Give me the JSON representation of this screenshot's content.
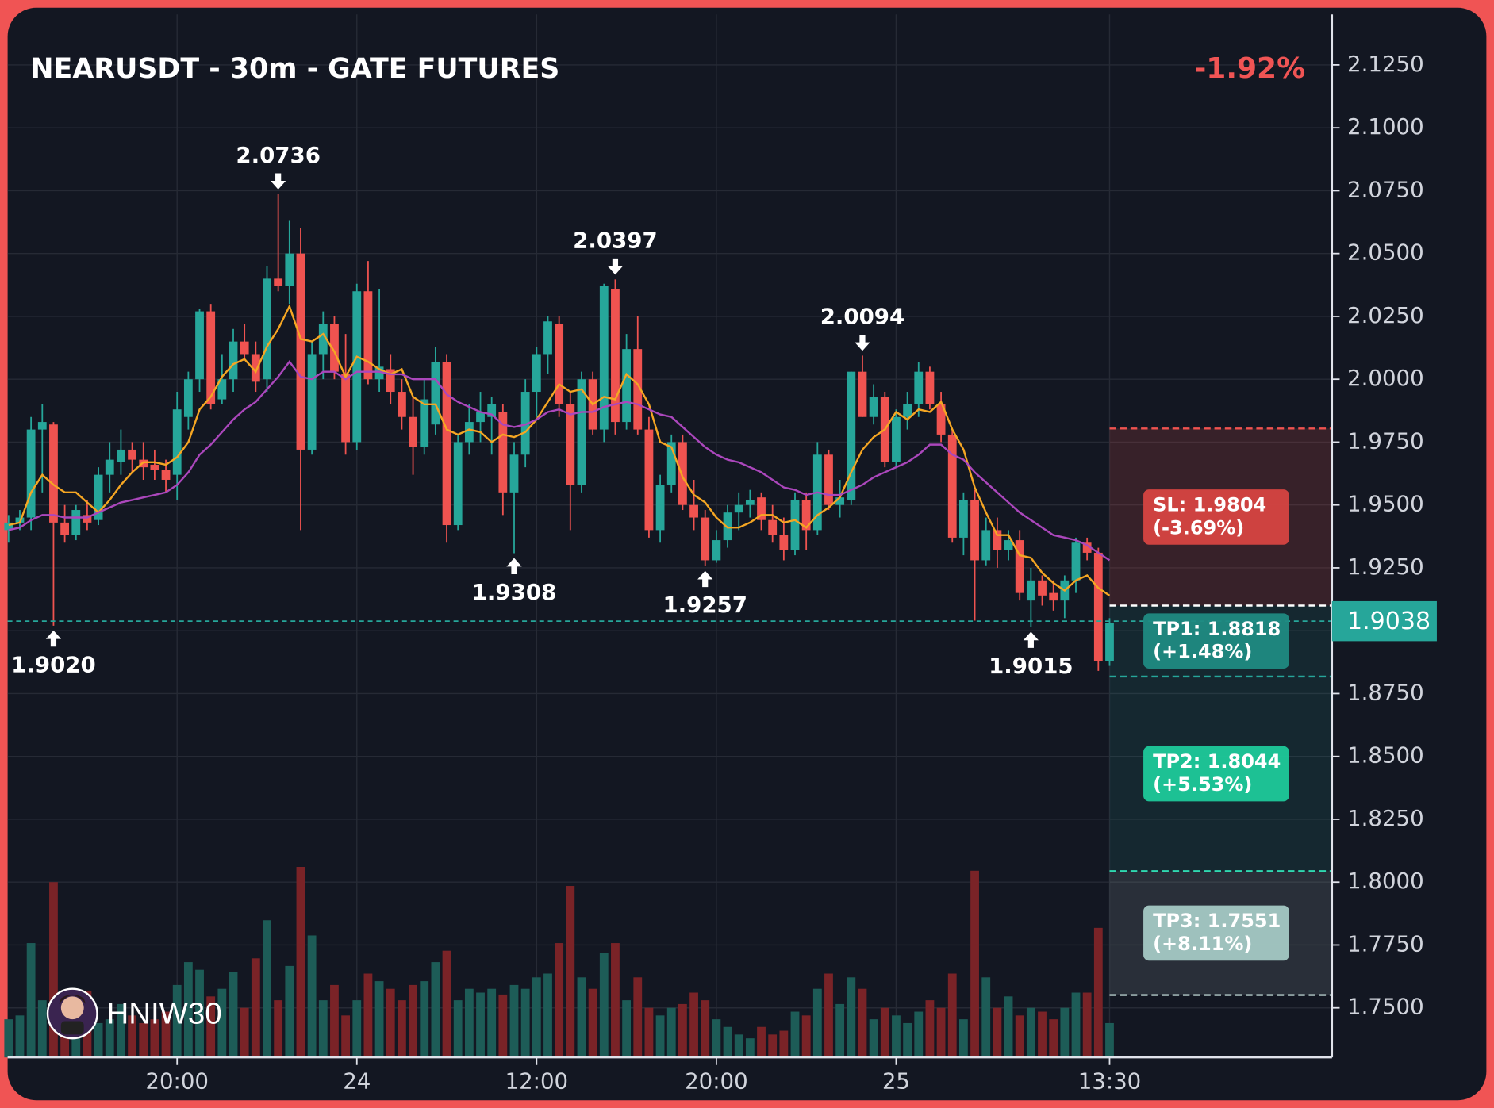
{
  "chart_data": {
    "type": "candlestick",
    "title": "NEARUSDT - 30m - GATE FUTURES",
    "change": "-1.92%",
    "watermark": "HNIW30",
    "up_color": "#26a69a",
    "down_color": "#ef5350",
    "volume_up_color": "#1d5c57",
    "volume_down_color": "#7a2327",
    "xlim": [
      -0.085,
      117.8
    ],
    "ylim": [
      1.7303,
      2.1451
    ],
    "vlim": [
      0,
      100
    ],
    "grid": true,
    "yticks": [
      {
        "value": 2.125,
        "label": "2.1250"
      },
      {
        "value": 2.1,
        "label": "2.1000"
      },
      {
        "value": 2.075,
        "label": "2.0750"
      },
      {
        "value": 2.05,
        "label": "2.0500"
      },
      {
        "value": 2.025,
        "label": "2.0250"
      },
      {
        "value": 2.0,
        "label": "2.0000"
      },
      {
        "value": 1.975,
        "label": "1.9750"
      },
      {
        "value": 1.95,
        "label": "1.9500"
      },
      {
        "value": 1.925,
        "label": "1.9250"
      },
      {
        "value": 1.9,
        "label": "1.9000"
      },
      {
        "value": 1.875,
        "label": "1.8750"
      },
      {
        "value": 1.85,
        "label": "1.8500"
      },
      {
        "value": 1.825,
        "label": "1.8250"
      },
      {
        "value": 1.8,
        "label": "1.8000"
      },
      {
        "value": 1.775,
        "label": "1.7750"
      },
      {
        "value": 1.75,
        "label": "1.7500"
      }
    ],
    "xticks": [
      {
        "value": 15,
        "label": "20:00"
      },
      {
        "value": 31,
        "label": "24"
      },
      {
        "value": 47,
        "label": "12:00"
      },
      {
        "value": 63,
        "label": "20:00"
      },
      {
        "value": 79,
        "label": "25"
      },
      {
        "value": 98,
        "label": "13:30"
      }
    ],
    "open": [
      1.94,
      1.943,
      1.945,
      1.98,
      1.982,
      1.943,
      1.938,
      1.946,
      1.944,
      1.962,
      1.967,
      1.972,
      1.968,
      1.966,
      1.964,
      1.962,
      1.985,
      2.0,
      2.027,
      1.992,
      2.0,
      2.015,
      2.01,
      2.0,
      2.04,
      2.037,
      2.05,
      1.972,
      2.01,
      2.022,
      2.002,
      1.975,
      2.035,
      2.0,
      2.004,
      1.995,
      1.985,
      1.973,
      1.982,
      2.007,
      1.942,
      1.975,
      1.983,
      1.985,
      1.987,
      1.955,
      1.97,
      1.995,
      2.01,
      2.022,
      1.99,
      1.958,
      2.0,
      1.98,
      2.036,
      1.983,
      2.012,
      1.98,
      1.94,
      1.958,
      1.975,
      1.95,
      1.945,
      1.928,
      1.936,
      1.947,
      1.95,
      1.953,
      1.944,
      1.938,
      1.932,
      1.952,
      1.94,
      1.97,
      1.95,
      1.952,
      2.003,
      1.985,
      1.993,
      1.967,
      1.985,
      1.99,
      2.003,
      1.99,
      1.978,
      1.937,
      1.952,
      1.928,
      1.94,
      1.932,
      1.936,
      1.912,
      1.92,
      1.915,
      1.912,
      1.92,
      1.935,
      1.931,
      1.888
    ],
    "high": [
      1.946,
      1.948,
      1.985,
      1.99,
      1.983,
      1.95,
      1.95,
      1.952,
      1.965,
      1.975,
      1.98,
      1.975,
      1.975,
      1.972,
      1.968,
      1.995,
      2.003,
      2.028,
      2.03,
      2.01,
      2.02,
      2.022,
      2.015,
      2.045,
      2.0736,
      2.063,
      2.06,
      2.015,
      2.027,
      2.025,
      2.018,
      2.038,
      2.047,
      2.036,
      2.01,
      2.0,
      1.993,
      2.0,
      2.013,
      2.01,
      1.978,
      1.99,
      1.995,
      1.993,
      1.99,
      1.975,
      2.0,
      2.013,
      2.025,
      2.025,
      1.995,
      2.003,
      2.003,
      2.038,
      2.0397,
      2.018,
      2.025,
      1.985,
      1.962,
      1.978,
      1.978,
      1.96,
      1.948,
      1.94,
      1.95,
      1.955,
      1.956,
      1.955,
      1.95,
      1.945,
      1.955,
      1.955,
      1.975,
      1.972,
      1.96,
      2.003,
      2.0094,
      1.998,
      1.995,
      1.988,
      1.995,
      2.007,
      2.005,
      1.995,
      1.98,
      1.955,
      1.956,
      1.945,
      1.945,
      1.94,
      1.94,
      1.925,
      1.922,
      1.92,
      1.922,
      1.937,
      1.937,
      1.933,
      1.905
    ],
    "low": [
      1.935,
      1.94,
      1.94,
      1.955,
      1.902,
      1.935,
      1.936,
      1.94,
      1.942,
      1.955,
      1.962,
      1.963,
      1.96,
      1.96,
      1.955,
      1.952,
      1.98,
      1.995,
      1.988,
      1.99,
      1.995,
      2.008,
      1.995,
      1.995,
      2.035,
      2.03,
      1.94,
      1.97,
      2.0,
      2.0,
      1.97,
      1.972,
      1.998,
      1.995,
      1.99,
      1.98,
      1.962,
      1.97,
      1.978,
      1.935,
      1.94,
      1.97,
      1.975,
      1.97,
      1.946,
      1.9308,
      1.965,
      1.985,
      2.002,
      1.985,
      1.94,
      1.955,
      1.978,
      1.975,
      1.978,
      1.98,
      1.978,
      1.937,
      1.935,
      1.955,
      1.948,
      1.94,
      1.9257,
      1.927,
      1.933,
      1.94,
      1.945,
      1.94,
      1.935,
      1.928,
      1.93,
      1.932,
      1.938,
      1.948,
      1.945,
      1.95,
      1.985,
      1.982,
      1.965,
      1.965,
      1.98,
      1.985,
      1.988,
      1.975,
      1.935,
      1.93,
      1.904,
      1.926,
      1.925,
      1.928,
      1.912,
      1.9015,
      1.91,
      1.908,
      1.905,
      1.915,
      1.928,
      1.884,
      1.886
    ],
    "close": [
      1.943,
      1.945,
      1.98,
      1.983,
      1.943,
      1.938,
      1.948,
      1.943,
      1.962,
      1.968,
      1.972,
      1.968,
      1.965,
      1.964,
      1.96,
      1.988,
      2.0,
      2.027,
      1.99,
      2.0,
      2.015,
      2.01,
      1.999,
      2.04,
      2.037,
      2.05,
      1.972,
      2.01,
      2.022,
      2.003,
      1.975,
      2.035,
      2.0,
      2.005,
      1.995,
      1.985,
      1.973,
      1.992,
      2.007,
      1.942,
      1.975,
      1.983,
      1.987,
      1.99,
      1.955,
      1.97,
      1.995,
      2.01,
      2.023,
      1.99,
      1.958,
      2.0,
      1.98,
      2.037,
      1.983,
      2.012,
      1.98,
      1.94,
      1.958,
      1.975,
      1.95,
      1.945,
      1.928,
      1.936,
      1.947,
      1.95,
      1.952,
      1.944,
      1.938,
      1.932,
      1.952,
      1.94,
      1.97,
      1.95,
      1.953,
      2.003,
      1.985,
      1.993,
      1.967,
      1.985,
      1.99,
      2.003,
      1.99,
      1.978,
      1.937,
      1.952,
      1.928,
      1.94,
      1.932,
      1.936,
      1.915,
      1.92,
      1.914,
      1.912,
      1.92,
      1.935,
      1.931,
      1.888,
      1.903
    ],
    "volume": [
      20,
      22,
      60,
      30,
      92,
      20,
      24,
      35,
      18,
      20,
      28,
      22,
      18,
      20,
      24,
      38,
      50,
      46,
      32,
      36,
      45,
      26,
      52,
      72,
      30,
      48,
      100,
      64,
      30,
      38,
      22,
      30,
      44,
      40,
      36,
      30,
      38,
      40,
      50,
      56,
      30,
      36,
      34,
      36,
      33,
      38,
      36,
      42,
      44,
      60,
      90,
      42,
      36,
      55,
      60,
      30,
      42,
      26,
      22,
      26,
      28,
      34,
      30,
      20,
      16,
      12,
      10,
      16,
      12,
      14,
      24,
      22,
      36,
      44,
      28,
      42,
      36,
      20,
      26,
      22,
      18,
      24,
      30,
      26,
      44,
      20,
      98,
      42,
      26,
      32,
      22,
      26,
      24,
      20,
      26,
      34,
      34,
      68,
      18
    ],
    "series": [
      {
        "color": "#f5a623",
        "values": [
          1.942,
          1.943,
          1.955,
          1.962,
          1.958,
          1.955,
          1.955,
          1.951,
          1.947,
          1.952,
          1.958,
          1.963,
          1.967,
          1.967,
          1.966,
          1.969,
          1.975,
          1.988,
          1.993,
          2.001,
          2.006,
          2.008,
          2.003,
          2.013,
          2.02,
          2.029,
          2.016,
          2.015,
          2.018,
          2.011,
          2.001,
          2.009,
          2.007,
          2.004,
          2.002,
          2.004,
          1.993,
          1.99,
          1.99,
          1.98,
          1.978,
          1.98,
          1.979,
          1.975,
          1.978,
          1.977,
          1.979,
          1.984,
          1.991,
          1.998,
          1.995,
          1.996,
          1.99,
          1.993,
          1.992,
          2.002,
          1.998,
          1.99,
          1.975,
          1.973,
          1.961,
          1.954,
          1.951,
          1.945,
          1.941,
          1.941,
          1.943,
          1.946,
          1.946,
          1.943,
          1.944,
          1.941,
          1.946,
          1.949,
          1.953,
          1.963,
          1.972,
          1.977,
          1.98,
          1.987,
          1.984,
          1.988,
          1.987,
          1.991,
          1.98,
          1.972,
          1.957,
          1.947,
          1.938,
          1.938,
          1.93,
          1.929,
          1.923,
          1.919,
          1.916,
          1.92,
          1.922,
          1.917,
          1.914
        ]
      },
      {
        "color": "#ab47bc",
        "values": [
          1.94,
          1.941,
          1.944,
          1.946,
          1.946,
          1.945,
          1.945,
          1.945,
          1.947,
          1.949,
          1.951,
          1.952,
          1.953,
          1.954,
          1.955,
          1.958,
          1.963,
          1.97,
          1.974,
          1.979,
          1.984,
          1.988,
          1.991,
          1.996,
          2.001,
          2.007,
          2.001,
          2.0,
          2.003,
          2.003,
          2.0,
          2.003,
          2.003,
          2.003,
          2.002,
          2.002,
          2.0,
          2.0,
          2.0,
          1.994,
          1.991,
          1.989,
          1.987,
          1.986,
          1.982,
          1.981,
          1.982,
          1.984,
          1.987,
          1.988,
          1.986,
          1.987,
          1.987,
          1.989,
          1.99,
          1.991,
          1.99,
          1.988,
          1.986,
          1.985,
          1.981,
          1.977,
          1.973,
          1.97,
          1.968,
          1.967,
          1.965,
          1.963,
          1.96,
          1.957,
          1.956,
          1.954,
          1.955,
          1.954,
          1.954,
          1.956,
          1.958,
          1.961,
          1.963,
          1.965,
          1.967,
          1.97,
          1.974,
          1.974,
          1.97,
          1.968,
          1.963,
          1.959,
          1.955,
          1.951,
          1.947,
          1.944,
          1.941,
          1.938,
          1.937,
          1.936,
          1.934,
          1.931,
          1.928
        ]
      }
    ],
    "annotations": [
      {
        "value": 2.0736,
        "label": "2.0736"
      },
      {
        "value": 2.0397,
        "label": "2.0397"
      },
      {
        "value": 2.0094,
        "label": "2.0094"
      },
      {
        "value": 1.902,
        "label": "1.9020"
      },
      {
        "value": 1.9308,
        "label": "1.9308"
      },
      {
        "value": 1.9257,
        "label": "1.9257"
      },
      {
        "value": 1.9015,
        "label": "1.9015"
      }
    ],
    "last_price": {
      "value": 1.9038,
      "label": "1.9038",
      "color": "#26a69a"
    },
    "entry": {
      "value": 1.91,
      "color": "#ffffff"
    },
    "levels": [
      {
        "label": "SL: 1.9804",
        "change": "(-3.69%)",
        "value": 1.9804,
        "color": "#ef5350",
        "box_color": "#d64541"
      },
      {
        "label": "TP1: 1.8818",
        "change": "(+1.48%)",
        "value": 1.8818,
        "color": "#26a69a",
        "box_color": "#1f8a82"
      },
      {
        "label": "TP2: 1.8044",
        "change": "(+5.53%)",
        "value": 1.8044,
        "color": "#2fd8b0",
        "box_color": "#1dc99a"
      },
      {
        "label": "TP3: 1.7551",
        "change": "(+8.11%)",
        "value": 1.7551,
        "color": "#b2c8c6",
        "box_color": "#a4c9c4"
      }
    ]
  }
}
